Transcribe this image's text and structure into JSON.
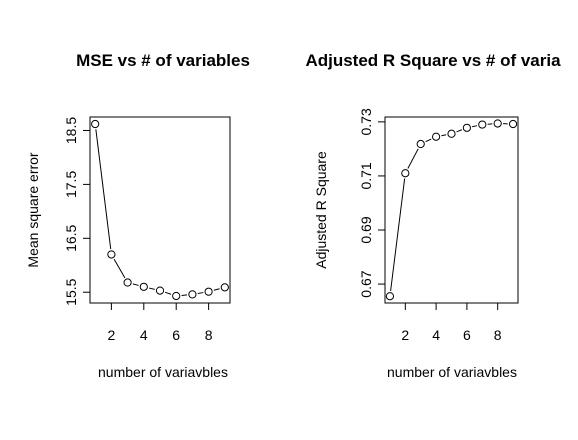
{
  "chart_data": [
    {
      "type": "line",
      "title": "MSE vs # of variables",
      "xlabel": "number of variavbles",
      "ylabel": "Mean square error",
      "x": [
        1,
        2,
        3,
        4,
        5,
        6,
        7,
        8,
        9
      ],
      "series": [
        {
          "values": [
            18.62,
            16.2,
            15.68,
            15.6,
            15.53,
            15.43,
            15.46,
            15.51,
            15.59
          ]
        }
      ],
      "xticks": [
        2,
        4,
        6,
        8
      ],
      "xtick_labels": [
        "2",
        "4",
        "6",
        "8"
      ],
      "yticks": [
        15.5,
        16.5,
        17.5,
        18.5
      ],
      "ytick_labels": [
        "15.5",
        "16.5",
        "17.5",
        "18.5"
      ],
      "xlim": [
        0.68,
        9.32
      ],
      "ylim": [
        15.3,
        18.75
      ],
      "markers": "open-circle",
      "line_style": "segments-between-points",
      "grid": false,
      "legend": "none"
    },
    {
      "type": "line",
      "title": "Adjusted R Square vs # of varia",
      "xlabel": "number of variavbles",
      "ylabel": "Adjusted R Square",
      "x": [
        1,
        2,
        3,
        4,
        5,
        6,
        7,
        8,
        9
      ],
      "series": [
        {
          "values": [
            0.6655,
            0.711,
            0.7218,
            0.7245,
            0.7256,
            0.7278,
            0.729,
            0.7294,
            0.7292
          ]
        }
      ],
      "xticks": [
        2,
        4,
        6,
        8
      ],
      "xtick_labels": [
        "2",
        "4",
        "6",
        "8"
      ],
      "yticks": [
        0.67,
        0.69,
        0.71,
        0.73
      ],
      "ytick_labels": [
        "0.67",
        "0.69",
        "0.71",
        "0.73"
      ],
      "xlim": [
        0.68,
        9.32
      ],
      "ylim": [
        0.663,
        0.7318
      ],
      "markers": "open-circle",
      "line_style": "segments-between-points",
      "grid": false,
      "legend": "none"
    }
  ]
}
